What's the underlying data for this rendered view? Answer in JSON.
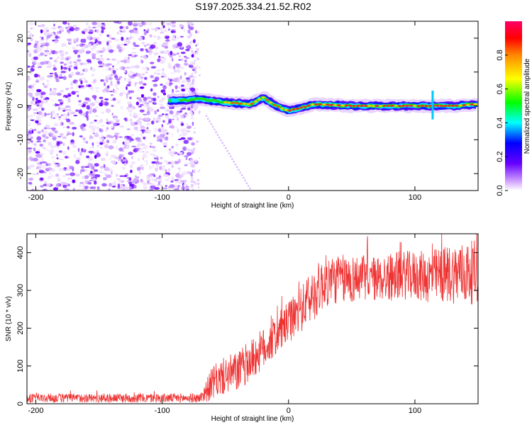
{
  "title": "S197.2025.334.21.52.R02",
  "chart_data": [
    {
      "type": "heatmap",
      "xlabel": "Height of straight line (km)",
      "ylabel": "Frequency (Hz)",
      "xlim": [
        -207,
        150
      ],
      "ylim": [
        -25,
        25
      ],
      "xticks": [
        -200,
        -100,
        0,
        100
      ],
      "xtick_labels": [
        "-200",
        "-100",
        "0",
        "100"
      ],
      "yticks": [
        -20,
        -10,
        0,
        10,
        20
      ],
      "ytick_labels": [
        "-20",
        "-10",
        "0",
        "10",
        "20"
      ],
      "noise_region_x": [
        -207,
        -73
      ],
      "signal_track": [
        {
          "x": -95,
          "freq": 1.5
        },
        {
          "x": -70,
          "freq": 2.0
        },
        {
          "x": -50,
          "freq": 1.0
        },
        {
          "x": -30,
          "freq": 0.5
        },
        {
          "x": -20,
          "freq": 2.5
        },
        {
          "x": -10,
          "freq": 0.0
        },
        {
          "x": 0,
          "freq": -1.5
        },
        {
          "x": 10,
          "freq": -0.5
        },
        {
          "x": 20,
          "freq": 0.5
        },
        {
          "x": 50,
          "freq": 0.0
        },
        {
          "x": 80,
          "freq": 0.0
        },
        {
          "x": 110,
          "freq": 0.0
        },
        {
          "x": 130,
          "freq": 0.0
        },
        {
          "x": 150,
          "freq": 0.5
        }
      ],
      "colorbar": {
        "label": "Normalized spectral amplitude",
        "range": [
          0,
          1
        ],
        "ticks": [
          0,
          0.2,
          0.4,
          0.6,
          0.8
        ],
        "tick_labels": [
          "0.0",
          "0.2",
          "0.4",
          "0.6",
          "0.8"
        ],
        "colors": [
          "#ffffff",
          "#8800ff",
          "#0000ff",
          "#00ffff",
          "#00ff00",
          "#ffff00",
          "#ff8800",
          "#ff0000",
          "#ff0066"
        ]
      }
    },
    {
      "type": "line",
      "xlabel": "Height of straight line (km)",
      "ylabel": "SNR (10 * v/v)",
      "xlim": [
        -207,
        150
      ],
      "ylim": [
        0,
        450
      ],
      "xticks": [
        -200,
        -100,
        0,
        100
      ],
      "xtick_labels": [
        "-200",
        "-100",
        "0",
        "100"
      ],
      "yticks": [
        0,
        100,
        200,
        300,
        400
      ],
      "ytick_labels": [
        "0",
        "100",
        "200",
        "300",
        "400"
      ],
      "color": "#ee3333",
      "series": [
        {
          "name": "SNR",
          "x": [
            -207,
            -180,
            -150,
            -120,
            -100,
            -80,
            -70,
            -65,
            -60,
            -50,
            -40,
            -30,
            -20,
            -10,
            0,
            10,
            20,
            25,
            30,
            40,
            50,
            60,
            70,
            80,
            90,
            100,
            110,
            120,
            130,
            140,
            150
          ],
          "mean": [
            15,
            15,
            15,
            15,
            15,
            15,
            15,
            35,
            55,
            75,
            85,
            115,
            145,
            180,
            215,
            250,
            290,
            310,
            325,
            330,
            330,
            335,
            330,
            335,
            340,
            340,
            335,
            340,
            345,
            345,
            350
          ],
          "amp": [
            12,
            12,
            12,
            12,
            12,
            12,
            12,
            30,
            45,
            50,
            55,
            55,
            55,
            55,
            55,
            60,
            70,
            70,
            70,
            65,
            65,
            60,
            60,
            65,
            65,
            65,
            70,
            75,
            80,
            85,
            85
          ]
        }
      ]
    }
  ]
}
